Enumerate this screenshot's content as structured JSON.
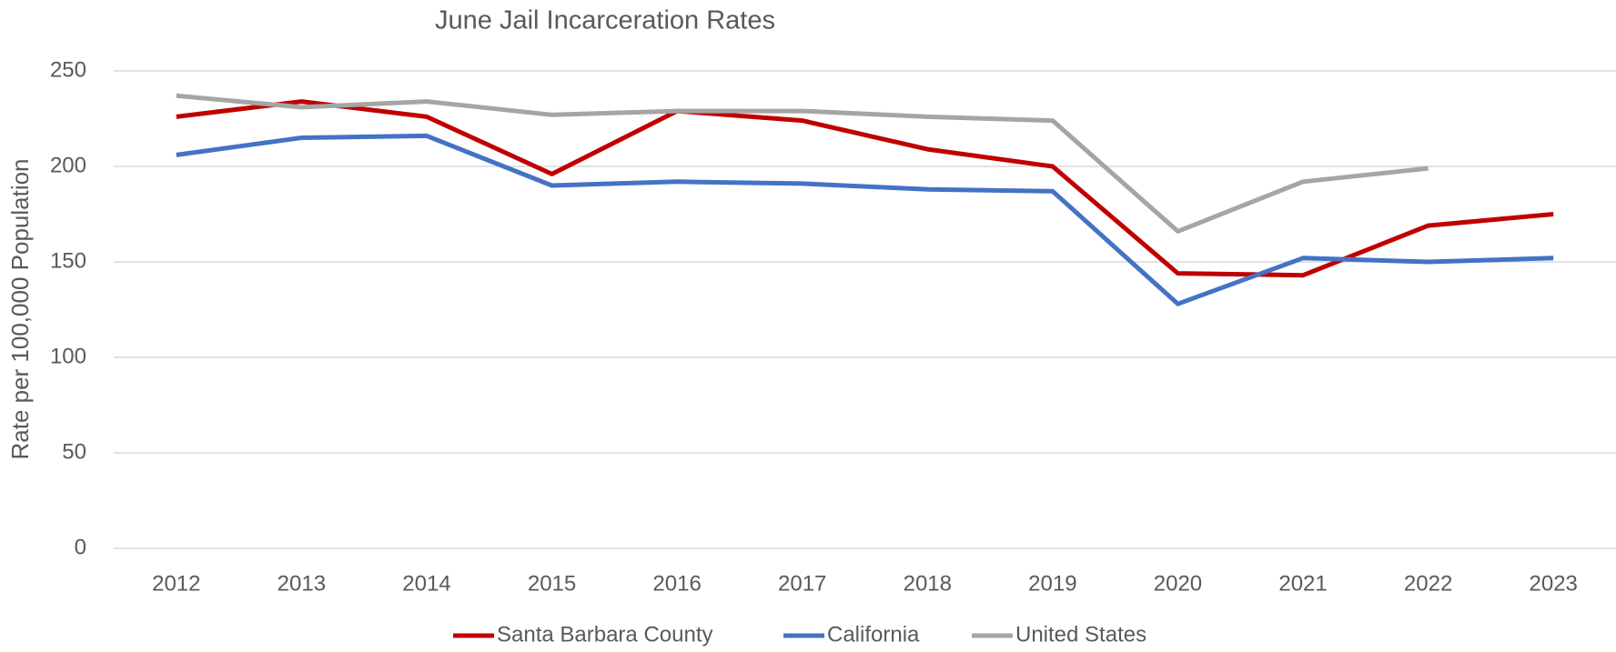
{
  "chart_data": {
    "type": "line",
    "title": "June Jail Incarceration Rates",
    "y_label": "Rate per 100,000 Population",
    "categories": [
      "2012",
      "2013",
      "2014",
      "2015",
      "2016",
      "2017",
      "2018",
      "2019",
      "2020",
      "2021",
      "2022",
      "2023"
    ],
    "series": [
      {
        "name": "Santa Barbara County",
        "color": "#c00000",
        "values": [
          226,
          234,
          226,
          196,
          229,
          224,
          209,
          200,
          144,
          143,
          169,
          175
        ]
      },
      {
        "name": "California",
        "color": "#4472c4",
        "values": [
          206,
          215,
          216,
          190,
          192,
          191,
          188,
          187,
          128,
          152,
          150,
          152
        ]
      },
      {
        "name": "United States",
        "color": "#a5a5a5",
        "values": [
          237,
          231,
          234,
          227,
          229,
          229,
          226,
          224,
          166,
          192,
          199,
          null
        ]
      }
    ],
    "ylim": [
      0,
      250
    ],
    "yticks": [
      0,
      50,
      100,
      150,
      200,
      250
    ],
    "grid": true,
    "legend": "bottom"
  }
}
